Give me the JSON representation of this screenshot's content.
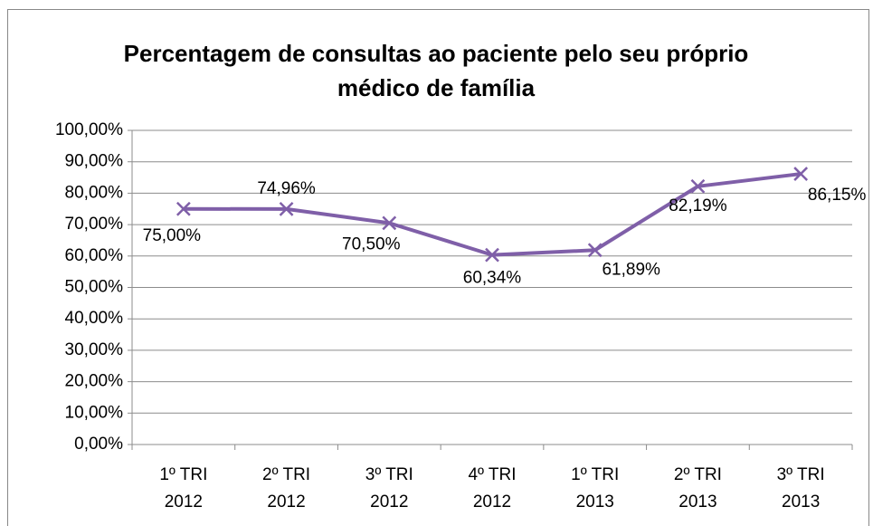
{
  "chart_data": {
    "type": "line",
    "title": "Percentagem de consultas ao paciente pelo seu próprio médico de família",
    "categories": [
      [
        "1º TRI",
        "2012"
      ],
      [
        "2º TRI",
        "2012"
      ],
      [
        "3º TRI",
        "2012"
      ],
      [
        "4º TRI",
        "2012"
      ],
      [
        "1º TRI",
        "2013"
      ],
      [
        "2º TRI",
        "2013"
      ],
      [
        "3º TRI",
        "2013"
      ]
    ],
    "series": [
      {
        "color": "#7f5fa8",
        "values": [
          75.0,
          74.96,
          70.5,
          60.34,
          61.89,
          82.19,
          86.15
        ],
        "value_labels": [
          "75,00%",
          "74,96%",
          "70,50%",
          "60,34%",
          "61,89%",
          "82,19%",
          "86,15%"
        ]
      }
    ],
    "ylim": [
      0,
      100
    ],
    "yticks": [
      {
        "value": 0,
        "label": "0,00%"
      },
      {
        "value": 10,
        "label": "10,00%"
      },
      {
        "value": 20,
        "label": "20,00%"
      },
      {
        "value": 30,
        "label": "30,00%"
      },
      {
        "value": 40,
        "label": "40,00%"
      },
      {
        "value": 50,
        "label": "50,00%"
      },
      {
        "value": 60,
        "label": "60,00%"
      },
      {
        "value": 70,
        "label": "70,00%"
      },
      {
        "value": 80,
        "label": "80,00%"
      },
      {
        "value": 90,
        "label": "90,00%"
      },
      {
        "value": 100,
        "label": "100,00%"
      }
    ],
    "grid": true
  }
}
